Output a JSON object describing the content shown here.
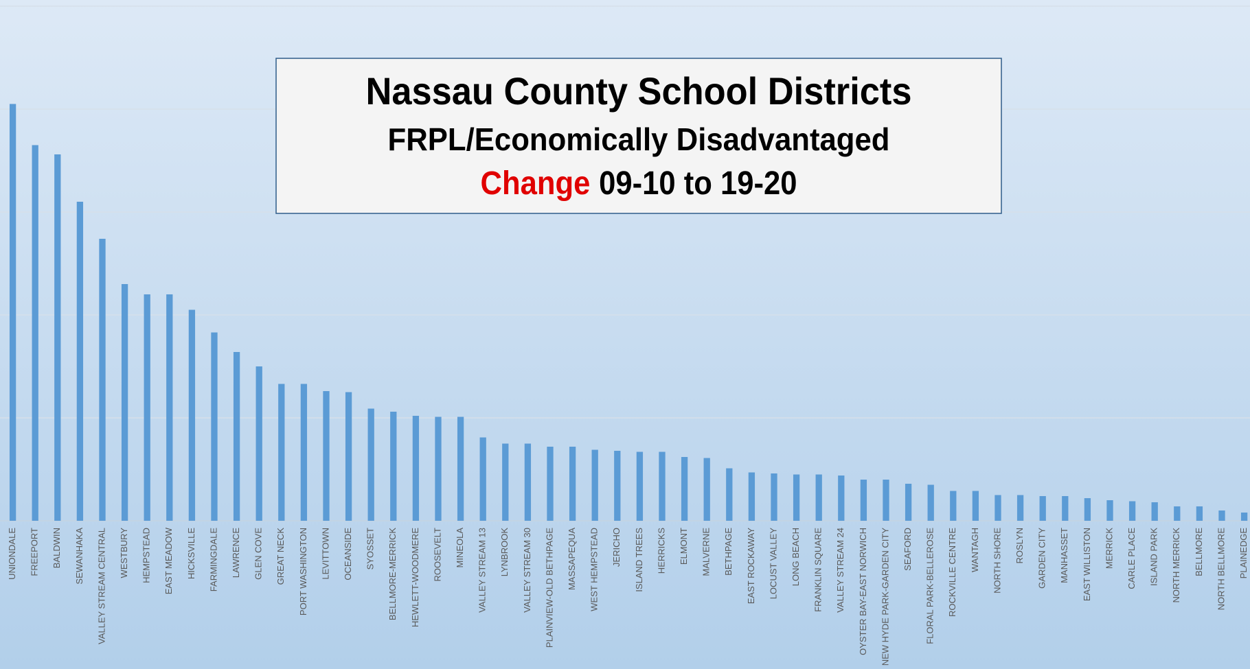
{
  "chart_data": {
    "type": "bar",
    "title": "Nassau County School Districts",
    "subtitle": "FRPL/Economically Disadvantaged",
    "subtitle_highlight": "Change",
    "subtitle_rest": "09-10 to 19-20",
    "categories": [
      "UNIONDALE",
      "FREEPORT",
      "BALDWIN",
      "SEWANHAKA",
      "VALLEY STREAM CENTRAL",
      "WESTBURY",
      "HEMPSTEAD",
      "EAST MEADOW",
      "HICKSVILLE",
      "FARMINGDALE",
      "LAWRENCE",
      "GLEN COVE",
      "GREAT NECK",
      "PORT WASHINGTON",
      "LEVITTOWN",
      "OCEANSIDE",
      "SYOSSET",
      "BELLMORE-MERRICK",
      "HEWLETT-WOODMERE",
      "ROOSEVELT",
      "MINEOLA",
      "VALLEY STREAM 13",
      "LYNBROOK",
      "VALLEY STREAM 30",
      "PLAINVIEW-OLD BETHPAGE",
      "MASSAPEQUA",
      "WEST HEMPSTEAD",
      "JERICHO",
      "ISLAND TREES",
      "HERRICKS",
      "ELMONT",
      "MALVERNE",
      "BETHPAGE",
      "EAST ROCKAWAY",
      "LOCUST VALLEY",
      "LONG BEACH",
      "FRANKLIN SQUARE",
      "VALLEY STREAM 24",
      "OYSTER BAY-EAST NORWICH",
      "NEW HYDE PARK-GARDEN CITY",
      "SEAFORD",
      "FLORAL PARK-BELLEROSE",
      "ROCKVILLE CENTRE",
      "WANTAGH",
      "NORTH SHORE",
      "ROSLYN",
      "GARDEN CITY",
      "MANHASSET",
      "EAST WILLISTON",
      "MERRICK",
      "CARLE PLACE",
      "ISLAND PARK",
      "NORTH MERRICK",
      "BELLMORE",
      "NORTH BELLMORE",
      "PLAINEDGE"
    ],
    "values": [
      4.05,
      3.65,
      3.56,
      3.1,
      2.74,
      2.3,
      2.2,
      2.2,
      2.05,
      1.83,
      1.64,
      1.5,
      1.33,
      1.33,
      1.26,
      1.25,
      1.09,
      1.06,
      1.02,
      1.01,
      1.01,
      0.81,
      0.75,
      0.75,
      0.72,
      0.72,
      0.69,
      0.68,
      0.67,
      0.67,
      0.62,
      0.61,
      0.51,
      0.47,
      0.46,
      0.45,
      0.45,
      0.44,
      0.4,
      0.4,
      0.36,
      0.35,
      0.29,
      0.29,
      0.25,
      0.25,
      0.24,
      0.24,
      0.22,
      0.2,
      0.19,
      0.18,
      0.14,
      0.14,
      0.1,
      0.08
    ],
    "color": "#5b9bd5",
    "ylim": [
      0,
      5
    ],
    "yticks": [
      0,
      1,
      2,
      3,
      4,
      5
    ],
    "grid": true
  }
}
